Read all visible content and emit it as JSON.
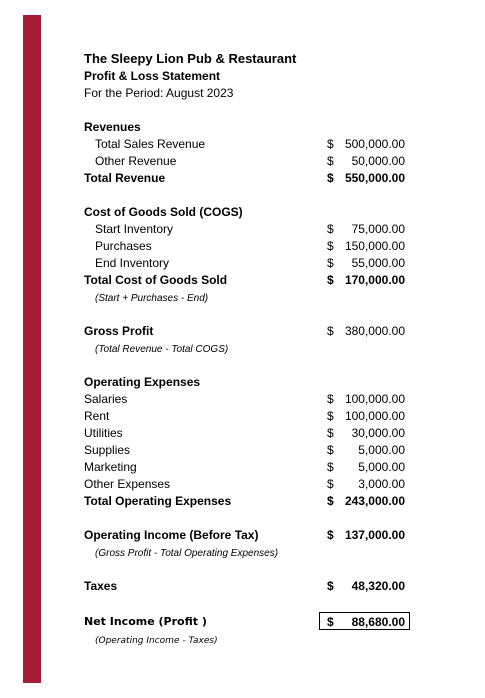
{
  "header": {
    "company": "The Sleepy Lion Pub & Restaurant",
    "statement": "Profit & Loss Statement",
    "period": "For the Period: August 2023"
  },
  "revenues": {
    "heading": "Revenues",
    "items": [
      {
        "label": "Total Sales Revenue",
        "symbol": "$",
        "amount": "500,000.00"
      },
      {
        "label": "Other Revenue",
        "symbol": "$",
        "amount": "50,000.00"
      }
    ],
    "total": {
      "label": "Total Revenue",
      "symbol": "$",
      "amount": "550,000.00"
    }
  },
  "cogs": {
    "heading": "Cost of Goods Sold (COGS)",
    "items": [
      {
        "label": "Start Inventory",
        "symbol": "$",
        "amount": "75,000.00"
      },
      {
        "label": "Purchases",
        "symbol": "$",
        "amount": "150,000.00"
      },
      {
        "label": "End Inventory",
        "symbol": "$",
        "amount": "55,000.00"
      }
    ],
    "total": {
      "label": "Total Cost of Goods Sold",
      "symbol": "$",
      "amount": "170,000.00"
    },
    "note": "(Start + Purchases - End)"
  },
  "gross_profit": {
    "label": "Gross Profit",
    "symbol": "$",
    "amount": "380,000.00",
    "note": "(Total Revenue - Total COGS)"
  },
  "operating_expenses": {
    "heading": "Operating Expenses",
    "items": [
      {
        "label": "Salaries",
        "symbol": "$",
        "amount": "100,000.00"
      },
      {
        "label": "Rent",
        "symbol": "$",
        "amount": "100,000.00"
      },
      {
        "label": "Utilities",
        "symbol": "$",
        "amount": "30,000.00"
      },
      {
        "label": "Supplies",
        "symbol": "$",
        "amount": "5,000.00"
      },
      {
        "label": "Marketing",
        "symbol": "$",
        "amount": "5,000.00"
      },
      {
        "label": "Other Expenses",
        "symbol": "$",
        "amount": "3,000.00"
      }
    ],
    "total": {
      "label": "Total Operating Expenses",
      "symbol": "$",
      "amount": "243,000.00"
    }
  },
  "operating_income": {
    "label": "Operating Income (Before Tax)",
    "symbol": "$",
    "amount": "137,000.00",
    "note": "(Gross Profit - Total Operating Expenses)"
  },
  "taxes": {
    "label": "Taxes",
    "symbol": "$",
    "amount": "48,320.00"
  },
  "net_income": {
    "label": "Net Income (Profit )",
    "symbol": "$",
    "amount": "88,680.00",
    "note": "(Operating Income - Taxes)"
  },
  "colors": {
    "accent_band": "#a61c37"
  }
}
